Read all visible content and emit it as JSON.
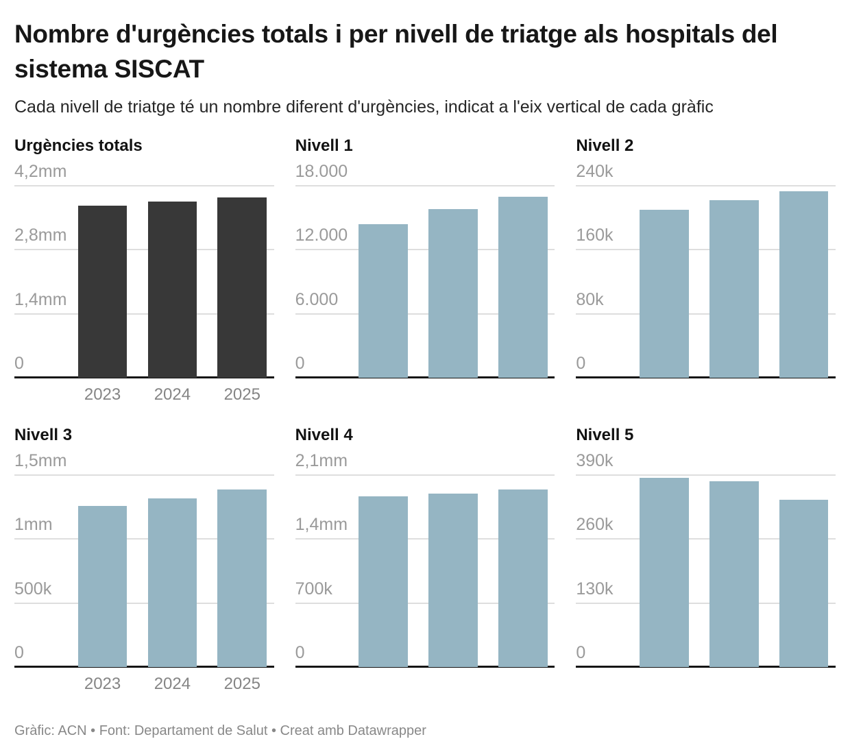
{
  "header": {
    "title": "Nombre d'urgències totals i per nivell de triatge als hospitals del sistema SISCAT",
    "subtitle": "Cada nivell de triatge té un nombre diferent d'urgències, indicat a l'eix vertical de cada gràfic"
  },
  "footer": {
    "text": "Gràfic: ACN • Font: Departament de Salut • Creat amb Datawrapper"
  },
  "colors": {
    "total_bar": "#383838",
    "level_bar": "#95b5c3",
    "gridline": "#dedede",
    "axis_line": "#151515",
    "y_tick_label": "#9a9a9a",
    "x_tick_label": "#858585"
  },
  "chart_data": [
    {
      "id": "urgencies-totals",
      "type": "bar",
      "title": "Urgències totals",
      "categories": [
        "2023",
        "2024",
        "2025"
      ],
      "values": [
        3760000,
        3860000,
        3940000
      ],
      "ymax": 4200000,
      "y_ticks": [
        "4,2mm",
        "2,8mm",
        "1,4mm",
        "0"
      ],
      "bar_color": "#383838",
      "show_x_labels": true,
      "grid": true,
      "legend": "none"
    },
    {
      "id": "nivell-1",
      "type": "bar",
      "title": "Nivell 1",
      "categories": [
        "2023",
        "2024",
        "2025"
      ],
      "values": [
        14400,
        15800,
        17000
      ],
      "ymax": 18000,
      "y_ticks": [
        "18.000",
        "12.000",
        "6.000",
        "0"
      ],
      "bar_color": "#95b5c3",
      "show_x_labels": false,
      "grid": true,
      "legend": "none"
    },
    {
      "id": "nivell-2",
      "type": "bar",
      "title": "Nivell 2",
      "categories": [
        "2023",
        "2024",
        "2025"
      ],
      "values": [
        210000,
        222000,
        233000
      ],
      "ymax": 240000,
      "y_ticks": [
        "240k",
        "160k",
        "80k",
        "0"
      ],
      "bar_color": "#95b5c3",
      "show_x_labels": false,
      "grid": true,
      "legend": "none"
    },
    {
      "id": "nivell-3",
      "type": "bar",
      "title": "Nivell 3",
      "categories": [
        "2023",
        "2024",
        "2025"
      ],
      "values": [
        1260000,
        1320000,
        1390000
      ],
      "ymax": 1500000,
      "y_ticks": [
        "1,5mm",
        "1mm",
        "500k",
        "0"
      ],
      "bar_color": "#95b5c3",
      "show_x_labels": true,
      "grid": true,
      "legend": "none"
    },
    {
      "id": "nivell-4",
      "type": "bar",
      "title": "Nivell 4",
      "categories": [
        "2023",
        "2024",
        "2025"
      ],
      "values": [
        1870000,
        1900000,
        1940000
      ],
      "ymax": 2100000,
      "y_ticks": [
        "2,1mm",
        "1,4mm",
        "700k",
        "0"
      ],
      "bar_color": "#95b5c3",
      "show_x_labels": false,
      "grid": true,
      "legend": "none"
    },
    {
      "id": "nivell-5",
      "type": "bar",
      "title": "Nivell 5",
      "categories": [
        "2023",
        "2024",
        "2025"
      ],
      "values": [
        385000,
        378000,
        340000
      ],
      "ymax": 390000,
      "y_ticks": [
        "390k",
        "260k",
        "130k",
        "0"
      ],
      "bar_color": "#95b5c3",
      "show_x_labels": false,
      "grid": true,
      "legend": "none"
    }
  ]
}
